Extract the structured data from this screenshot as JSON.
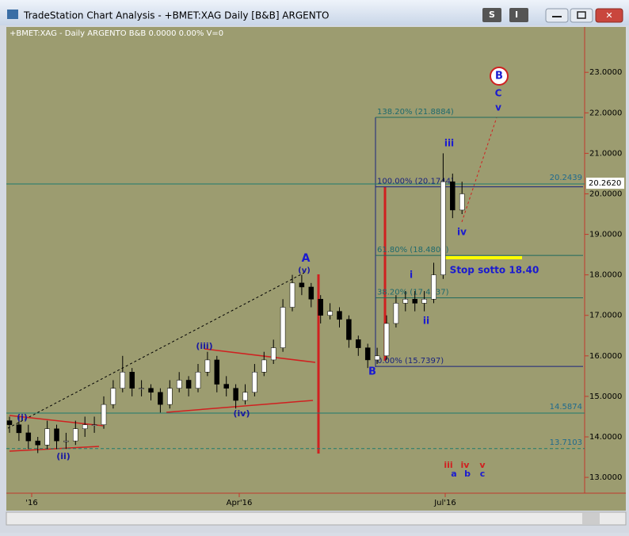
{
  "window": {
    "title": "TradeStation Chart Analysis - +BMET:XAG Daily [B&B] ARGENTO",
    "buttons": [
      "S",
      "I"
    ]
  },
  "chart_data": {
    "type": "candlestick",
    "header": "+BMET:XAG - Daily  ARGENTO  B&B  0.0000  0.00%  V=0",
    "ylim": [
      12.61,
      24.12
    ],
    "yticks": [
      {
        "value": 13,
        "label": "13.0000"
      },
      {
        "value": 14,
        "label": "14.0000"
      },
      {
        "value": 15,
        "label": "15.0000"
      },
      {
        "value": 16,
        "label": "16.0000"
      },
      {
        "value": 17,
        "label": "17.0000"
      },
      {
        "value": 18,
        "label": "18.0000"
      },
      {
        "value": 19,
        "label": "19.0000"
      },
      {
        "value": 20,
        "label": "20.0000"
      },
      {
        "value": 21,
        "label": "21.0000"
      },
      {
        "value": 22,
        "label": "22.0000"
      },
      {
        "value": 23,
        "label": "23.0000"
      }
    ],
    "xticks": [
      "'16",
      "Apr'16",
      "Jul'16"
    ],
    "last_price": {
      "value": 20.262,
      "label": "20.2620"
    },
    "levels": [
      20.2439,
      14.5874,
      13.7103
    ],
    "fib_levels": [
      {
        "value": 21.8884,
        "label": "138.20% (21.8884)"
      },
      {
        "value": 20.1744,
        "label": "100.00% (20.1744)"
      },
      {
        "value": 18.4803,
        "label": "61.80% (18.4803)"
      },
      {
        "value": 17.4337,
        "label": "38.20% (17.4337)"
      },
      {
        "value": 15.7397,
        "label": "0.00% (15.7397)"
      }
    ],
    "annotations": [
      "(i)",
      "(ii)",
      "(iii)",
      "(iv)",
      "(v)",
      "A",
      "B",
      "i",
      "ii",
      "iii",
      "iv",
      "C",
      "v",
      "B",
      "Stop sotto 18.40",
      "iii",
      "a",
      "iv",
      "b",
      "v",
      "c"
    ],
    "bars": [
      [
        14.4,
        14.5,
        14.1,
        14.3
      ],
      [
        14.3,
        14.5,
        13.9,
        14.1
      ],
      [
        14.1,
        14.3,
        13.7,
        13.9
      ],
      [
        13.9,
        14.0,
        13.6,
        13.8
      ],
      [
        13.8,
        14.4,
        13.7,
        14.2
      ],
      [
        14.2,
        14.3,
        13.7,
        13.9
      ],
      [
        13.9,
        14.1,
        13.7,
        13.9
      ],
      [
        13.9,
        14.4,
        13.8,
        14.2
      ],
      [
        14.2,
        14.5,
        14.0,
        14.3
      ],
      [
        14.3,
        14.5,
        14.1,
        14.3
      ],
      [
        14.3,
        15.0,
        14.2,
        14.8
      ],
      [
        14.8,
        15.4,
        14.7,
        15.2
      ],
      [
        15.2,
        16.0,
        15.1,
        15.6
      ],
      [
        15.6,
        15.7,
        15.0,
        15.2
      ],
      [
        15.2,
        15.4,
        15.0,
        15.2
      ],
      [
        15.2,
        15.3,
        14.9,
        15.1
      ],
      [
        15.1,
        15.2,
        14.6,
        14.8
      ],
      [
        14.8,
        15.4,
        14.7,
        15.2
      ],
      [
        15.2,
        15.6,
        15.1,
        15.4
      ],
      [
        15.4,
        15.5,
        15.0,
        15.2
      ],
      [
        15.2,
        15.8,
        15.1,
        15.6
      ],
      [
        15.6,
        16.1,
        15.5,
        15.9
      ],
      [
        15.9,
        16.0,
        15.1,
        15.3
      ],
      [
        15.3,
        15.5,
        15.0,
        15.2
      ],
      [
        15.2,
        15.3,
        14.7,
        14.9
      ],
      [
        14.9,
        15.3,
        14.8,
        15.1
      ],
      [
        15.1,
        15.8,
        15.0,
        15.6
      ],
      [
        15.6,
        16.1,
        15.5,
        15.9
      ],
      [
        15.9,
        16.4,
        15.8,
        16.2
      ],
      [
        16.2,
        17.4,
        16.1,
        17.2
      ],
      [
        17.2,
        18.0,
        17.1,
        17.8
      ],
      [
        17.8,
        18.0,
        17.5,
        17.7
      ],
      [
        17.7,
        17.8,
        17.2,
        17.4
      ],
      [
        17.4,
        17.5,
        16.8,
        17.0
      ],
      [
        17.0,
        17.3,
        16.9,
        17.1
      ],
      [
        17.1,
        17.2,
        16.7,
        16.9
      ],
      [
        16.9,
        17.0,
        16.2,
        16.4
      ],
      [
        16.4,
        16.5,
        16.0,
        16.2
      ],
      [
        16.2,
        16.3,
        15.7,
        15.9
      ],
      [
        15.9,
        16.2,
        15.8,
        16.0
      ],
      [
        16.0,
        17.0,
        15.9,
        16.8
      ],
      [
        16.8,
        17.5,
        16.7,
        17.3
      ],
      [
        17.3,
        17.6,
        17.1,
        17.4
      ],
      [
        17.4,
        17.6,
        17.1,
        17.3
      ],
      [
        17.3,
        17.6,
        17.1,
        17.4
      ],
      [
        17.4,
        18.3,
        17.3,
        18.0
      ],
      [
        18.0,
        21.0,
        17.9,
        20.3
      ],
      [
        20.3,
        20.5,
        19.4,
        19.6
      ],
      [
        19.6,
        20.3,
        19.5,
        20.0
      ]
    ]
  }
}
